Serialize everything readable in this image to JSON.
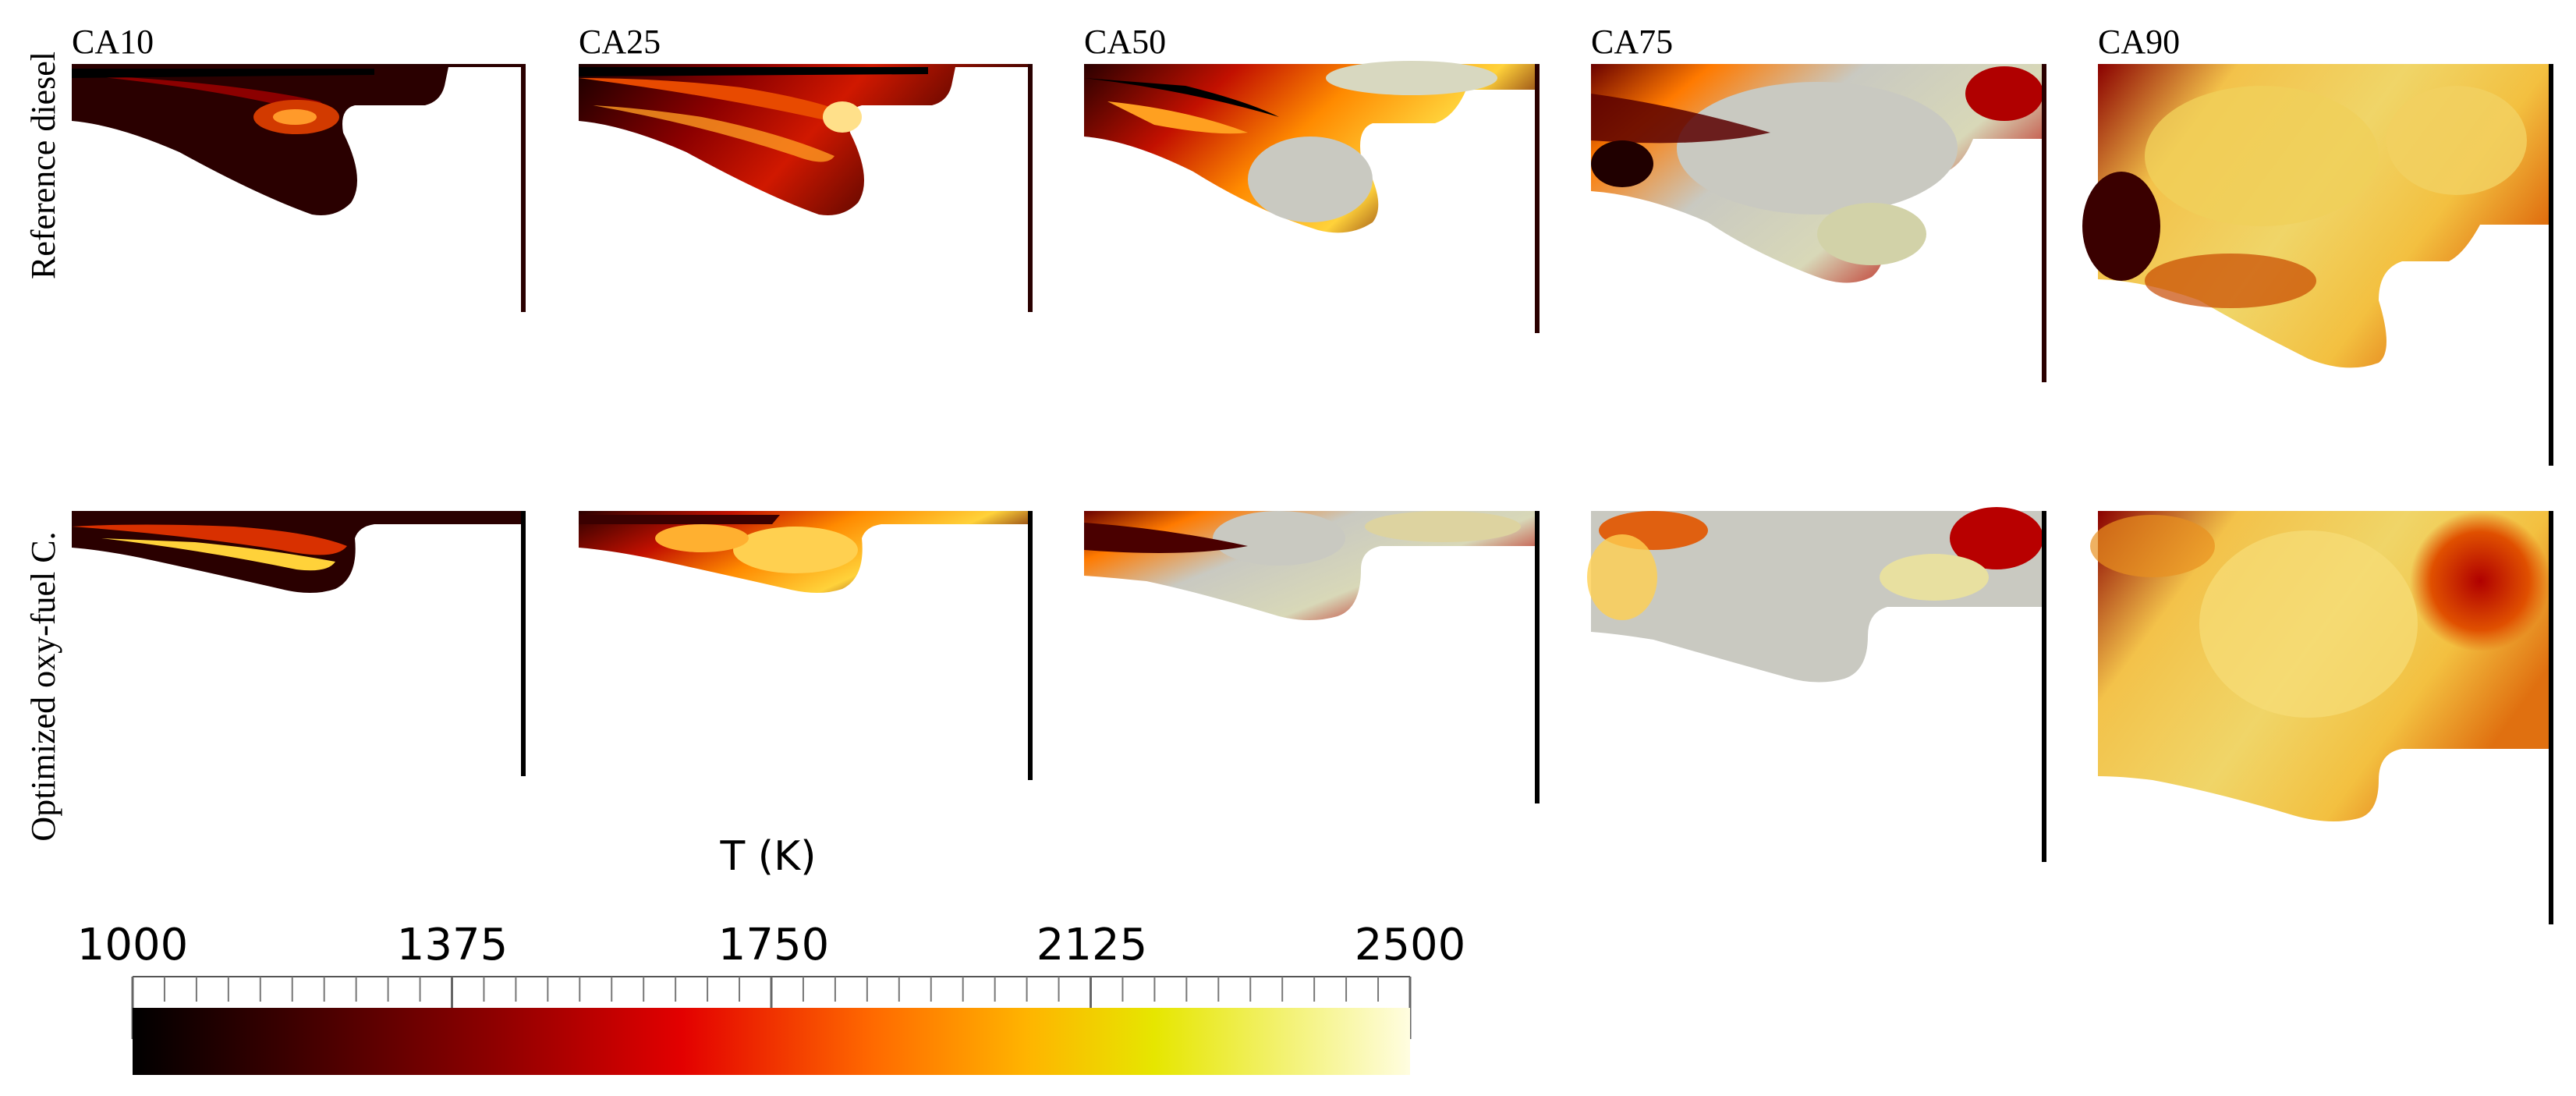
{
  "columns": [
    "CA10",
    "CA25",
    "CA50",
    "CA75",
    "CA90"
  ],
  "rows": [
    "Reference diesel",
    "Optimized oxy-fuel C."
  ],
  "colorbar": {
    "title": "T (K)",
    "min": 1000,
    "max": 2500,
    "tick_labels": [
      "1000",
      "1375",
      "1750",
      "2125",
      "2500"
    ],
    "colormap": "black-body (black → dark red → red → orange → yellow → white)",
    "colors": [
      "#000000",
      "#3a0000",
      "#8c0000",
      "#e30000",
      "#ff6a00",
      "#ffb400",
      "#e6e600",
      "#fffde0"
    ]
  },
  "panel_colors": {
    "hot_gray": "#c9c9c1",
    "background_white": "#ffffff"
  }
}
